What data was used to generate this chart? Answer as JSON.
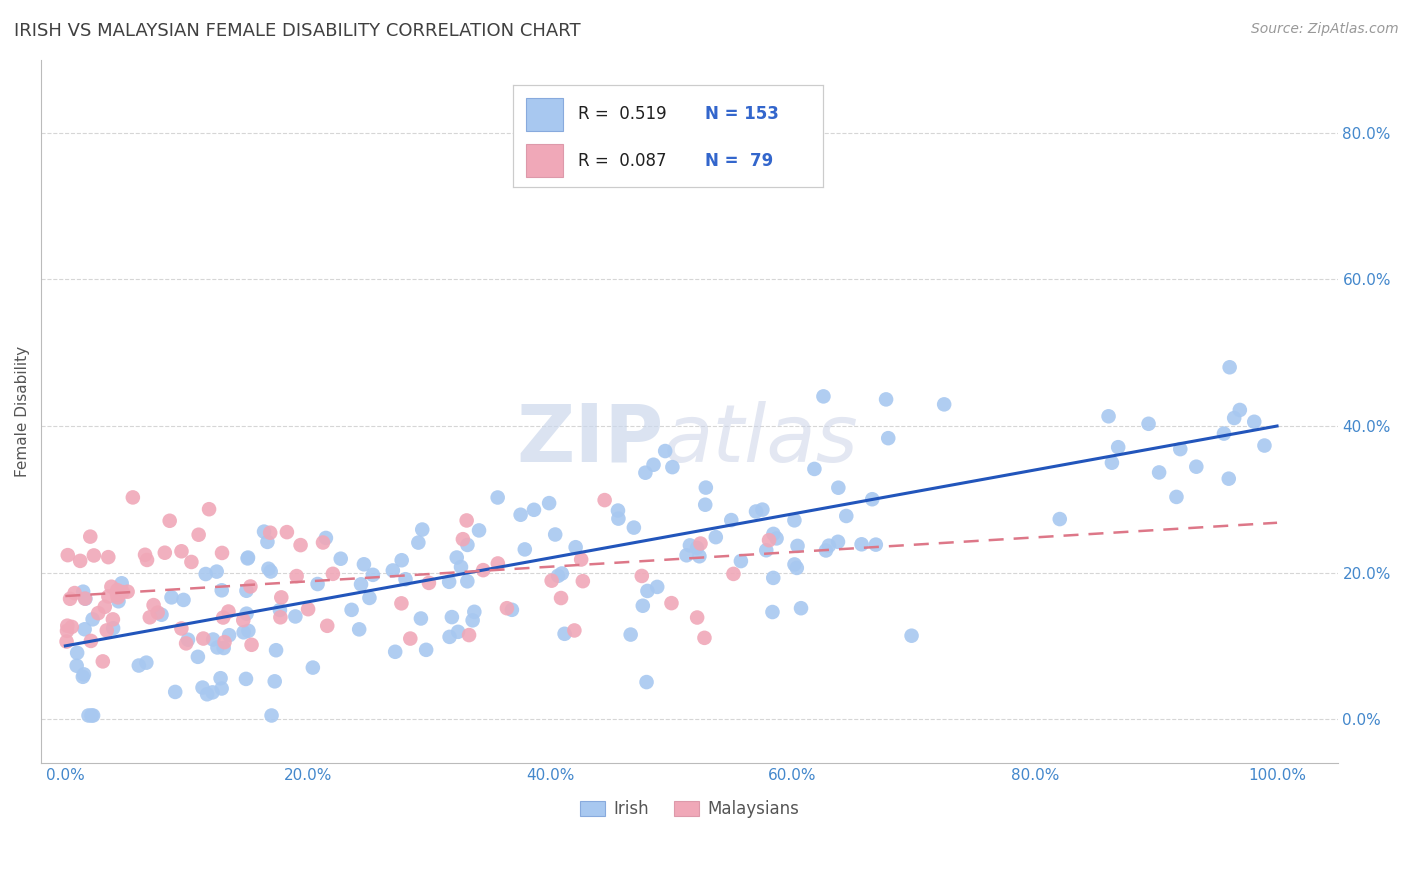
{
  "title": "IRISH VS MALAYSIAN FEMALE DISABILITY CORRELATION CHART",
  "source": "Source: ZipAtlas.com",
  "ylabel": "Female Disability",
  "x_ticks": [
    0.0,
    0.2,
    0.4,
    0.6,
    0.8,
    1.0
  ],
  "x_tick_labels": [
    "0.0%",
    "20.0%",
    "40.0%",
    "60.0%",
    "80.0%",
    "100.0%"
  ],
  "y_ticks": [
    0.0,
    0.2,
    0.4,
    0.6,
    0.8
  ],
  "y_tick_labels": [
    "0.0%",
    "20.0%",
    "40.0%",
    "60.0%",
    "80.0%"
  ],
  "xlim": [
    -0.02,
    1.05
  ],
  "ylim": [
    -0.06,
    0.9
  ],
  "legend_irish_R": "0.519",
  "legend_irish_N": "153",
  "legend_malaysian_R": "0.087",
  "legend_malaysian_N": "79",
  "irish_color": "#a8c8f0",
  "malaysian_color": "#f0a8b8",
  "irish_line_color": "#2255bb",
  "malaysian_line_color": "#dd7788",
  "background_color": "#ffffff",
  "grid_color": "#cccccc",
  "title_color": "#404040",
  "axis_label_color": "#555555",
  "tick_label_color": "#4488cc",
  "legend_R_color": "#202020",
  "legend_N_color": "#3366cc",
  "irish_line_y0": 0.1,
  "irish_line_y1": 0.4,
  "malaysian_line_y0": 0.168,
  "malaysian_line_y1": 0.268,
  "watermark_zip_color": "#ccd8ec",
  "watermark_atlas_color": "#ccd4e8"
}
